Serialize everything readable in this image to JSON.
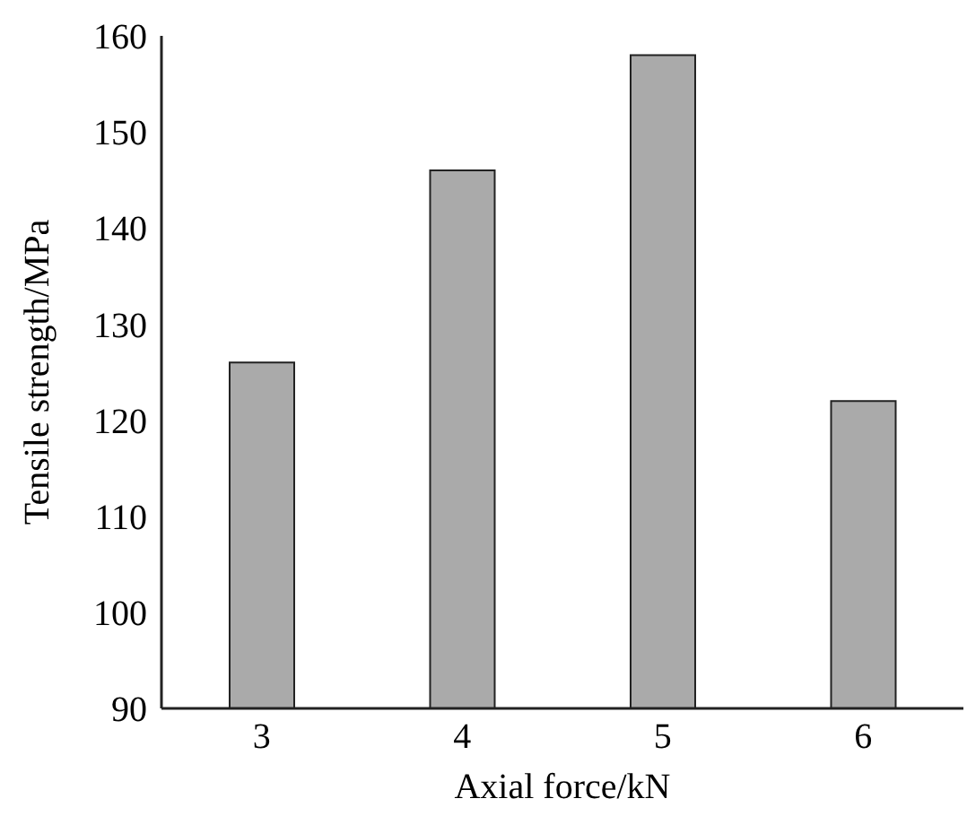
{
  "chart_data": {
    "type": "bar",
    "xlabel": "Axial force/kN",
    "ylabel": "Tensile strength/MPa",
    "categories": [
      "3",
      "4",
      "5",
      "6"
    ],
    "values": [
      126,
      146,
      158,
      122
    ],
    "color": "#aaaaaa",
    "ylim": [
      90,
      160
    ],
    "yticks": [
      90,
      100,
      110,
      120,
      130,
      140,
      150,
      160
    ],
    "grid": false
  }
}
